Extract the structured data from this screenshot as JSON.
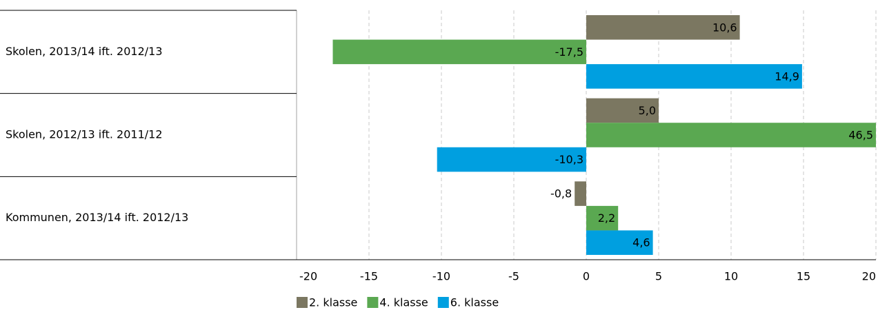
{
  "chart_data": {
    "type": "bar",
    "orientation": "horizontal",
    "categories": [
      "Skolen, 2013/14 ift. 2012/13",
      "Skolen, 2012/13 ift. 2011/12",
      "Kommunen, 2013/14 ift. 2012/13"
    ],
    "series": [
      {
        "name": "2. klasse",
        "color": "#7b7761",
        "values": [
          10.6,
          5.0,
          -0.8
        ],
        "value_labels": [
          "10,6",
          "5,0",
          "-0,8"
        ]
      },
      {
        "name": "4. klasse",
        "color": "#5aa851",
        "values": [
          -17.5,
          46.5,
          2.2
        ],
        "value_labels": [
          "-17,5",
          "46,5",
          "2,2"
        ]
      },
      {
        "name": "6. klasse",
        "color": "#009fe0",
        "values": [
          14.9,
          -10.3,
          4.6
        ],
        "value_labels": [
          "14,9",
          "-10,3",
          "4,6"
        ]
      }
    ],
    "xlim": [
      -20,
      20
    ],
    "xticks": [
      -20,
      -15,
      -10,
      -5,
      0,
      5,
      10,
      15,
      20
    ],
    "grid": true,
    "legend": "bottom"
  }
}
